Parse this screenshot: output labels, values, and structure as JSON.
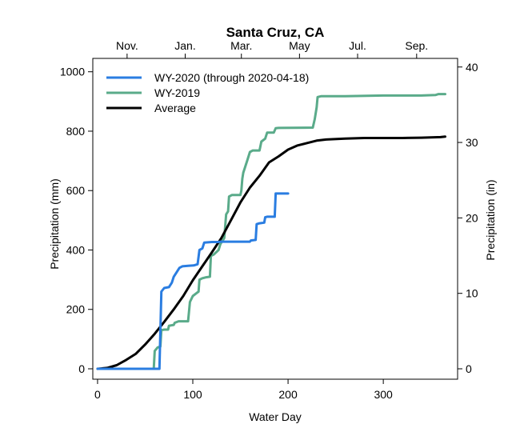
{
  "chart_data": {
    "type": "line",
    "title": "Santa Cruz, CA",
    "xlabel": "Water Day",
    "ylabel": "Precipitation (mm)",
    "ylabel_right": "Precipitation (in)",
    "xlim": [
      -5,
      378
    ],
    "ylim": [
      -35,
      1045
    ],
    "ylim_right_in": [
      -1.378,
      41.14
    ],
    "x_ticks": [
      0,
      100,
      200,
      300
    ],
    "y_ticks": [
      0,
      200,
      400,
      600,
      800,
      1000
    ],
    "y_ticks_right": [
      0,
      10,
      20,
      30,
      40
    ],
    "top_axis_month_ticks": [
      {
        "label": "Nov.",
        "day": 31
      },
      {
        "label": "Jan.",
        "day": 92
      },
      {
        "label": "Mar.",
        "day": 151
      },
      {
        "label": "May",
        "day": 212
      },
      {
        "label": "Jul.",
        "day": 273
      },
      {
        "label": "Sep.",
        "day": 335
      }
    ],
    "grid": false,
    "legend_position": "top-left",
    "series": [
      {
        "name": "WY-2020 (through 2020-04-18)",
        "color": "#2a7de1",
        "points": [
          [
            0,
            0
          ],
          [
            65,
            0
          ],
          [
            66,
            130
          ],
          [
            67,
            260
          ],
          [
            70,
            272
          ],
          [
            75,
            275
          ],
          [
            78,
            290
          ],
          [
            80,
            310
          ],
          [
            83,
            325
          ],
          [
            86,
            340
          ],
          [
            89,
            345
          ],
          [
            95,
            347
          ],
          [
            101,
            348
          ],
          [
            105,
            352
          ],
          [
            107,
            400
          ],
          [
            110,
            405
          ],
          [
            112,
            425
          ],
          [
            120,
            427
          ],
          [
            127,
            427
          ],
          [
            129,
            428
          ],
          [
            160,
            428
          ],
          [
            161,
            432
          ],
          [
            166,
            434
          ],
          [
            167,
            487
          ],
          [
            170,
            490
          ],
          [
            175,
            492
          ],
          [
            176,
            510
          ],
          [
            178,
            512
          ],
          [
            186,
            512
          ],
          [
            187,
            590
          ],
          [
            200,
            590
          ]
        ]
      },
      {
        "name": "WY-2019",
        "color": "#5aab8a",
        "points": [
          [
            0,
            0
          ],
          [
            59,
            0
          ],
          [
            60,
            60
          ],
          [
            63,
            72
          ],
          [
            66,
            75
          ],
          [
            67,
            130
          ],
          [
            70,
            132
          ],
          [
            74,
            132
          ],
          [
            75,
            145
          ],
          [
            80,
            148
          ],
          [
            81,
            155
          ],
          [
            85,
            160
          ],
          [
            95,
            160
          ],
          [
            97,
            225
          ],
          [
            100,
            245
          ],
          [
            104,
            255
          ],
          [
            106,
            260
          ],
          [
            107,
            300
          ],
          [
            110,
            305
          ],
          [
            114,
            308
          ],
          [
            118,
            310
          ],
          [
            119,
            380
          ],
          [
            122,
            385
          ],
          [
            127,
            400
          ],
          [
            129,
            420
          ],
          [
            133,
            440
          ],
          [
            135,
            520
          ],
          [
            137,
            530
          ],
          [
            138,
            580
          ],
          [
            141,
            585
          ],
          [
            150,
            585
          ],
          [
            151,
            600
          ],
          [
            152,
            640
          ],
          [
            153,
            660
          ],
          [
            155,
            680
          ],
          [
            157,
            700
          ],
          [
            160,
            730
          ],
          [
            163,
            735
          ],
          [
            170,
            735
          ],
          [
            172,
            765
          ],
          [
            176,
            775
          ],
          [
            178,
            795
          ],
          [
            185,
            795
          ],
          [
            187,
            810
          ],
          [
            190,
            811
          ],
          [
            226,
            812
          ],
          [
            228,
            840
          ],
          [
            230,
            880
          ],
          [
            231,
            915
          ],
          [
            235,
            918
          ],
          [
            260,
            918
          ],
          [
            300,
            920
          ],
          [
            340,
            920
          ],
          [
            355,
            922
          ],
          [
            358,
            925
          ],
          [
            365,
            925
          ]
        ]
      },
      {
        "name": "Average",
        "color": "#000000",
        "points": [
          [
            0,
            0
          ],
          [
            10,
            3
          ],
          [
            20,
            12
          ],
          [
            30,
            30
          ],
          [
            40,
            50
          ],
          [
            50,
            82
          ],
          [
            60,
            118
          ],
          [
            70,
            158
          ],
          [
            80,
            200
          ],
          [
            90,
            245
          ],
          [
            100,
            298
          ],
          [
            110,
            345
          ],
          [
            120,
            392
          ],
          [
            130,
            440
          ],
          [
            140,
            500
          ],
          [
            150,
            560
          ],
          [
            160,
            610
          ],
          [
            170,
            650
          ],
          [
            180,
            695
          ],
          [
            190,
            715
          ],
          [
            200,
            738
          ],
          [
            210,
            752
          ],
          [
            220,
            760
          ],
          [
            230,
            768
          ],
          [
            240,
            772
          ],
          [
            260,
            775
          ],
          [
            280,
            777
          ],
          [
            300,
            777
          ],
          [
            320,
            777
          ],
          [
            340,
            778
          ],
          [
            360,
            780
          ],
          [
            365,
            782
          ]
        ]
      }
    ]
  }
}
